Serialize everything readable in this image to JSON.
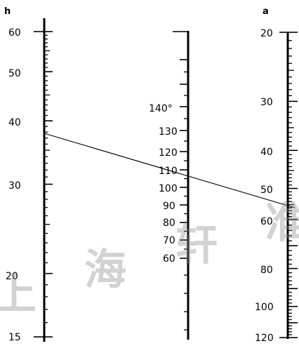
{
  "scales": {
    "h": {
      "title": "h",
      "labels": [
        "60",
        "50",
        "40",
        "30",
        "20",
        "15"
      ]
    },
    "angle": {
      "labels": [
        "140°",
        "130",
        "120",
        "110",
        "100",
        "90",
        "80",
        "70",
        "60"
      ]
    },
    "a": {
      "title": "a",
      "labels": [
        "20",
        "30",
        "40",
        "50",
        "60",
        "80",
        "100",
        "120"
      ]
    }
  },
  "index_line": {
    "h": 38,
    "angle": 110,
    "a": 52
  },
  "watermark": [
    "上",
    "海",
    "轩",
    "准"
  ]
}
